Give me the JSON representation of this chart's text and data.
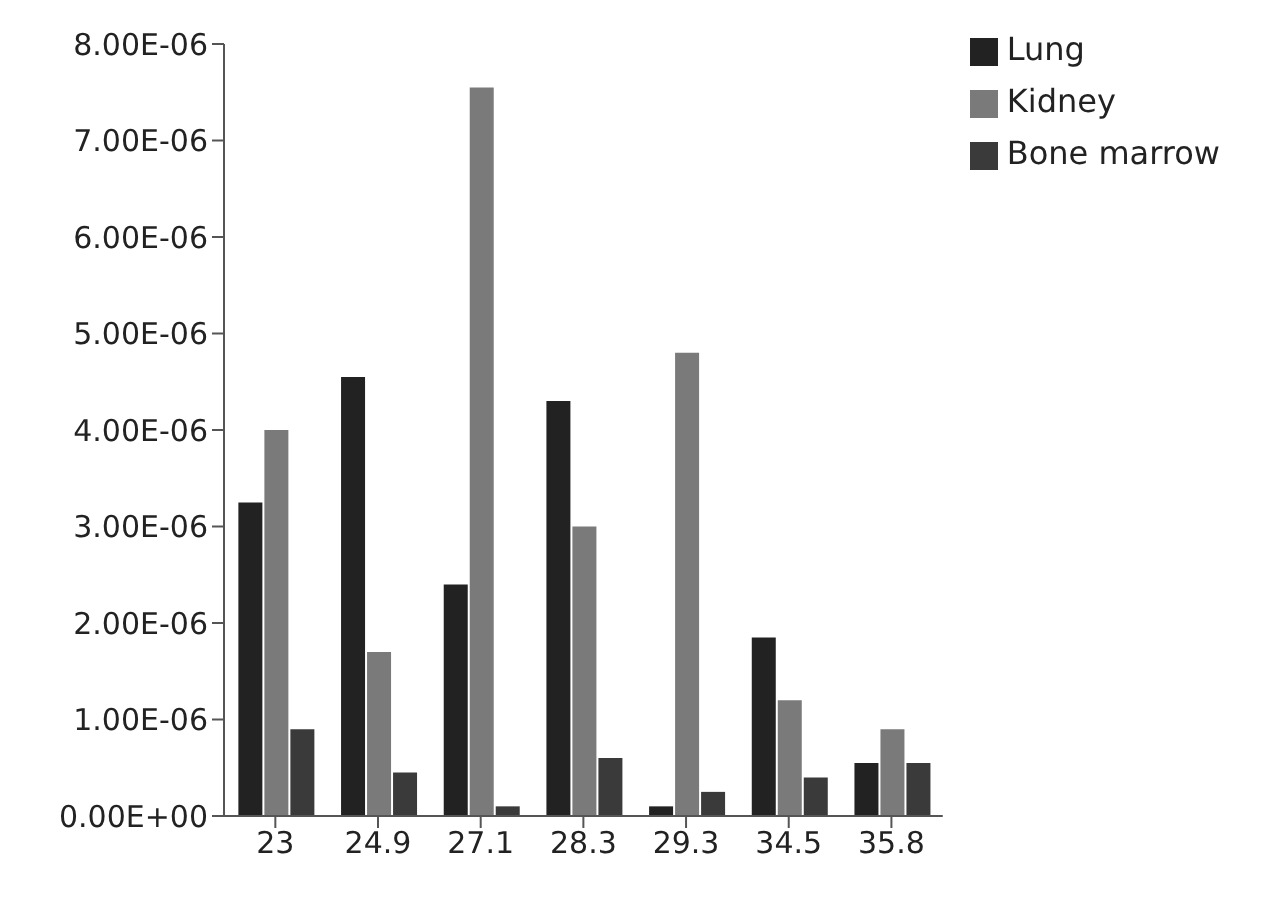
{
  "chart_data": {
    "type": "bar",
    "categories": [
      "23",
      "24.9",
      "27.1",
      "28.3",
      "29.3",
      "34.5",
      "35.8"
    ],
    "series": [
      {
        "name": "Lung",
        "color": "#222222",
        "values": [
          3.25e-06,
          4.55e-06,
          2.4e-06,
          4.3e-06,
          1e-07,
          1.85e-06,
          5.5e-07
        ]
      },
      {
        "name": "Kidney",
        "color": "#7a7a7a",
        "values": [
          4e-06,
          1.7e-06,
          7.55e-06,
          3e-06,
          4.8e-06,
          1.2e-06,
          9e-07
        ]
      },
      {
        "name": "Bone marrow",
        "color": "#3a3a3a",
        "values": [
          9e-07,
          4.5e-07,
          1e-07,
          6e-07,
          2.5e-07,
          4e-07,
          5.5e-07
        ]
      }
    ],
    "ylim": [
      0,
      8e-06
    ],
    "yticks": [
      {
        "value": 0,
        "label": "0.00E+00"
      },
      {
        "value": 1e-06,
        "label": "1.00E-06"
      },
      {
        "value": 2e-06,
        "label": "2.00E-06"
      },
      {
        "value": 3e-06,
        "label": "3.00E-06"
      },
      {
        "value": 4e-06,
        "label": "4.00E-06"
      },
      {
        "value": 5e-06,
        "label": "5.00E-06"
      },
      {
        "value": 6e-06,
        "label": "6.00E-06"
      },
      {
        "value": 7e-06,
        "label": "7.00E-06"
      },
      {
        "value": 8e-06,
        "label": "8.00E-06"
      }
    ],
    "grid": false,
    "legend": "top right"
  }
}
